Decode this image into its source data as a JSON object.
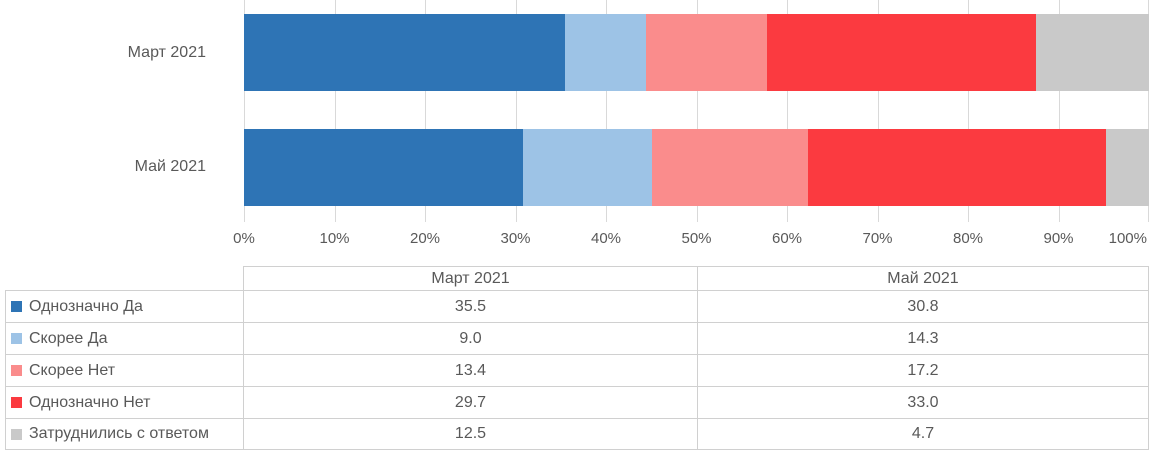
{
  "chart_data": {
    "type": "bar",
    "orientation": "horizontal",
    "stacked": true,
    "title": "",
    "categories": [
      "Март 2021",
      "Май 2021"
    ],
    "series": [
      {
        "name": "Однозначно Да",
        "color": "#2E74B5",
        "values": [
          35.5,
          30.8
        ]
      },
      {
        "name": "Скорее Да",
        "color": "#9DC3E6",
        "values": [
          9.0,
          14.3
        ]
      },
      {
        "name": "Скорее Нет",
        "color": "#FA8C8C",
        "values": [
          13.4,
          17.2
        ]
      },
      {
        "name": "Однозначно Нет",
        "color": "#FB3A40",
        "values": [
          29.7,
          33.0
        ]
      },
      {
        "name": "Затруднились с ответом",
        "color": "#C9C9C9",
        "values": [
          12.5,
          4.7
        ]
      }
    ],
    "x_axis": {
      "min": 0,
      "max": 100,
      "tick_labels": [
        "0%",
        "10%",
        "20%",
        "30%",
        "40%",
        "50%",
        "60%",
        "70%",
        "80%",
        "90%",
        "100%"
      ],
      "grid": true
    },
    "legend_position": "data-table-below-left"
  },
  "data_table": {
    "corner_label": "",
    "column_headers": [
      "Март 2021",
      "Май 2021"
    ],
    "rows": [
      {
        "label": "Однозначно Да",
        "values": [
          "35.5",
          "30.8"
        ]
      },
      {
        "label": "Скорее Да",
        "values": [
          "9.0",
          "14.3"
        ]
      },
      {
        "label": "Скорее Нет",
        "values": [
          "13.4",
          "17.2"
        ]
      },
      {
        "label": "Однозначно Нет",
        "values": [
          "29.7",
          "33.0"
        ]
      },
      {
        "label": "Затруднились с ответом",
        "values": [
          "12.5",
          "4.7"
        ]
      }
    ]
  },
  "colors": {
    "gridline": "#D9D9D9",
    "table_border": "#D0D0D0",
    "text": "#595959",
    "background": "#FFFFFF"
  }
}
